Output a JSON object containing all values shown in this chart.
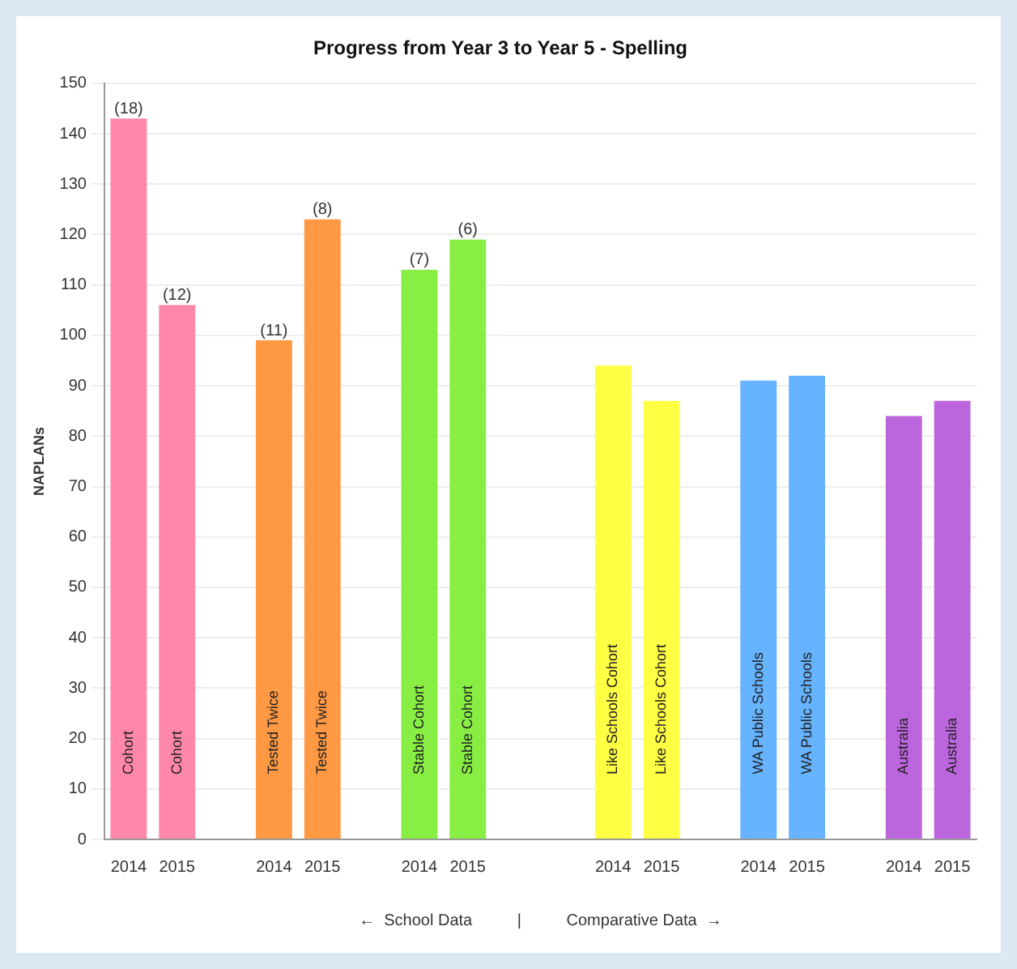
{
  "chart_data": {
    "type": "bar",
    "title": "Progress from Year 3 to Year 5 - Spelling",
    "ylabel": "NAPLANs",
    "xlabel": "←  School Data          |          Comparative Data  →",
    "categories": [
      "2014",
      "2015",
      null,
      "2014",
      "2015",
      null,
      "2014",
      "2015",
      null,
      null,
      "2014",
      "2015",
      null,
      "2014",
      "2015",
      null,
      "2014",
      "2015"
    ],
    "series": [
      {
        "name": "Cohort",
        "color": "#ff88aa",
        "values": [
          143,
          106,
          null,
          null,
          null,
          null,
          null,
          null,
          null,
          null,
          null,
          null,
          null,
          null,
          null,
          null,
          null,
          null
        ]
      },
      {
        "name": "Tested Twice",
        "color": "#ff9944",
        "values": [
          null,
          null,
          null,
          99,
          123,
          null,
          null,
          null,
          null,
          null,
          null,
          null,
          null,
          null,
          null,
          null,
          null,
          null
        ]
      },
      {
        "name": "Stable Cohort",
        "color": "#88ee44",
        "values": [
          null,
          null,
          null,
          null,
          null,
          null,
          113,
          119,
          null,
          null,
          null,
          null,
          null,
          null,
          null,
          null,
          null,
          null
        ]
      },
      {
        "name": "Like Schools Cohort",
        "color": "#ffff44",
        "values": [
          null,
          null,
          null,
          null,
          null,
          null,
          null,
          null,
          null,
          null,
          94,
          87,
          null,
          null,
          null,
          null,
          null,
          null
        ]
      },
      {
        "name": "WA Public Schools",
        "color": "#66b3ff",
        "values": [
          null,
          null,
          null,
          null,
          null,
          null,
          null,
          null,
          null,
          null,
          null,
          null,
          null,
          91,
          92,
          null,
          null,
          null
        ]
      },
      {
        "name": "Australia",
        "color": "#bb66dd",
        "values": [
          null,
          null,
          null,
          null,
          null,
          null,
          null,
          null,
          null,
          null,
          null,
          null,
          null,
          null,
          null,
          null,
          84,
          87
        ]
      }
    ],
    "annotations": [
      "(18)",
      "(12)",
      "(11)",
      "(8)",
      "(7)",
      "(6)"
    ],
    "ylim": [
      0,
      150
    ],
    "yticks": [
      0,
      10,
      20,
      30,
      40,
      50,
      60,
      70,
      80,
      90,
      100,
      110,
      120,
      130,
      140,
      150
    ],
    "grid": "y",
    "legend": false
  }
}
